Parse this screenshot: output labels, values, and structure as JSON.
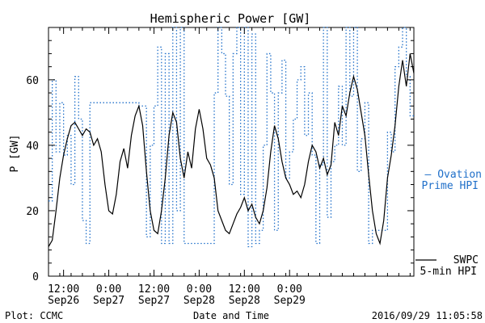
{
  "chart_data": {
    "type": "line",
    "title": "Hemispheric Power [GW]",
    "ylabel": "P [GW]",
    "xlabel": "Date and Time",
    "ylim": [
      0,
      76
    ],
    "yticks": [
      0,
      20,
      40,
      60
    ],
    "xlim": [
      "2016-09-26 08:00",
      "2016-09-30 09:00"
    ],
    "xticks": [
      {
        "time": "2016-09-26 12:00",
        "label1": "12:00",
        "label2": "Sep26"
      },
      {
        "time": "2016-09-27 00:00",
        "label1": "0:00",
        "label2": "Sep27"
      },
      {
        "time": "2016-09-27 12:00",
        "label1": "12:00",
        "label2": "Sep27"
      },
      {
        "time": "2016-09-28 00:00",
        "label1": "0:00",
        "label2": "Sep28"
      },
      {
        "time": "2016-09-28 12:00",
        "label1": "12:00",
        "label2": "Sep28"
      },
      {
        "time": "2016-09-29 00:00",
        "label1": "0:00",
        "label2": "Sep29"
      }
    ],
    "series": [
      {
        "name": "SWPC 5-min HPI",
        "color": "#000000",
        "style": "solid",
        "points": [
          [
            "2016-09-26 08:00",
            9
          ],
          [
            "2016-09-26 09:00",
            11
          ],
          [
            "2016-09-26 10:00",
            20
          ],
          [
            "2016-09-26 11:00",
            30
          ],
          [
            "2016-09-26 12:00",
            37
          ],
          [
            "2016-09-26 13:00",
            42
          ],
          [
            "2016-09-26 14:00",
            46
          ],
          [
            "2016-09-26 15:00",
            47
          ],
          [
            "2016-09-26 16:00",
            45
          ],
          [
            "2016-09-26 17:00",
            43
          ],
          [
            "2016-09-26 18:00",
            45
          ],
          [
            "2016-09-26 19:00",
            44
          ],
          [
            "2016-09-26 20:00",
            40
          ],
          [
            "2016-09-26 21:00",
            42
          ],
          [
            "2016-09-26 22:00",
            38
          ],
          [
            "2016-09-26 23:00",
            28
          ],
          [
            "2016-09-27 00:00",
            20
          ],
          [
            "2016-09-27 01:00",
            19
          ],
          [
            "2016-09-27 02:00",
            25
          ],
          [
            "2016-09-27 03:00",
            35
          ],
          [
            "2016-09-27 04:00",
            39
          ],
          [
            "2016-09-27 05:00",
            33
          ],
          [
            "2016-09-27 06:00",
            43
          ],
          [
            "2016-09-27 07:00",
            49
          ],
          [
            "2016-09-27 08:00",
            52
          ],
          [
            "2016-09-27 09:00",
            46
          ],
          [
            "2016-09-27 10:00",
            32
          ],
          [
            "2016-09-27 11:00",
            20
          ],
          [
            "2016-09-27 12:00",
            14
          ],
          [
            "2016-09-27 13:00",
            13
          ],
          [
            "2016-09-27 14:00",
            20
          ],
          [
            "2016-09-27 15:00",
            30
          ],
          [
            "2016-09-27 16:00",
            43
          ],
          [
            "2016-09-27 17:00",
            50
          ],
          [
            "2016-09-27 18:00",
            47
          ],
          [
            "2016-09-27 19:00",
            36
          ],
          [
            "2016-09-27 20:00",
            30
          ],
          [
            "2016-09-27 21:00",
            38
          ],
          [
            "2016-09-27 22:00",
            33
          ],
          [
            "2016-09-27 23:00",
            45
          ],
          [
            "2016-09-28 00:00",
            51
          ],
          [
            "2016-09-28 01:00",
            45
          ],
          [
            "2016-09-28 02:00",
            36
          ],
          [
            "2016-09-28 03:00",
            34
          ],
          [
            "2016-09-28 04:00",
            30
          ],
          [
            "2016-09-28 05:00",
            20
          ],
          [
            "2016-09-28 06:00",
            17
          ],
          [
            "2016-09-28 07:00",
            14
          ],
          [
            "2016-09-28 08:00",
            13
          ],
          [
            "2016-09-28 09:00",
            16
          ],
          [
            "2016-09-28 10:00",
            19
          ],
          [
            "2016-09-28 11:00",
            21
          ],
          [
            "2016-09-28 12:00",
            24
          ],
          [
            "2016-09-28 13:00",
            20
          ],
          [
            "2016-09-28 14:00",
            22
          ],
          [
            "2016-09-28 15:00",
            18
          ],
          [
            "2016-09-28 16:00",
            16
          ],
          [
            "2016-09-28 17:00",
            20
          ],
          [
            "2016-09-28 18:00",
            27
          ],
          [
            "2016-09-28 19:00",
            38
          ],
          [
            "2016-09-28 20:00",
            46
          ],
          [
            "2016-09-28 21:00",
            42
          ],
          [
            "2016-09-28 22:00",
            35
          ],
          [
            "2016-09-28 23:00",
            30
          ],
          [
            "2016-09-29 00:00",
            28
          ],
          [
            "2016-09-29 01:00",
            25
          ],
          [
            "2016-09-29 02:00",
            26
          ],
          [
            "2016-09-29 03:00",
            24
          ],
          [
            "2016-09-29 04:00",
            28
          ],
          [
            "2016-09-29 05:00",
            35
          ],
          [
            "2016-09-29 06:00",
            40
          ],
          [
            "2016-09-29 07:00",
            38
          ],
          [
            "2016-09-29 08:00",
            33
          ],
          [
            "2016-09-29 09:00",
            36
          ],
          [
            "2016-09-29 10:00",
            31
          ],
          [
            "2016-09-29 11:00",
            34
          ],
          [
            "2016-09-29 12:00",
            47
          ],
          [
            "2016-09-29 13:00",
            43
          ],
          [
            "2016-09-29 14:00",
            52
          ],
          [
            "2016-09-29 15:00",
            49
          ],
          [
            "2016-09-29 16:00",
            56
          ],
          [
            "2016-09-29 17:00",
            61
          ],
          [
            "2016-09-29 18:00",
            57
          ],
          [
            "2016-09-29 19:00",
            50
          ],
          [
            "2016-09-29 20:00",
            43
          ],
          [
            "2016-09-29 21:00",
            31
          ],
          [
            "2016-09-29 22:00",
            20
          ],
          [
            "2016-09-29 23:00",
            13
          ],
          [
            "2016-09-30 00:00",
            10
          ],
          [
            "2016-09-30 01:00",
            17
          ],
          [
            "2016-09-30 02:00",
            30
          ],
          [
            "2016-09-30 03:00",
            37
          ],
          [
            "2016-09-30 04:00",
            46
          ],
          [
            "2016-09-30 05:00",
            58
          ],
          [
            "2016-09-30 06:00",
            66
          ],
          [
            "2016-09-30 07:00",
            58
          ],
          [
            "2016-09-30 08:00",
            68
          ],
          [
            "2016-09-30 09:00",
            62
          ]
        ]
      },
      {
        "name": "Ovation Prime HPI",
        "color": "#1f6fc9",
        "style": "dotted-step",
        "points": [
          [
            "2016-09-26 08:00",
            23
          ],
          [
            "2016-09-26 09:00",
            60
          ],
          [
            "2016-09-26 10:00",
            38
          ],
          [
            "2016-09-26 11:00",
            53
          ],
          [
            "2016-09-26 12:00",
            37
          ],
          [
            "2016-09-26 13:00",
            43
          ],
          [
            "2016-09-26 14:00",
            28
          ],
          [
            "2016-09-26 15:00",
            61
          ],
          [
            "2016-09-26 16:00",
            48
          ],
          [
            "2016-09-26 17:00",
            17
          ],
          [
            "2016-09-26 18:00",
            10
          ],
          [
            "2016-09-26 19:00",
            53
          ],
          [
            "2016-09-27 04:00",
            53
          ],
          [
            "2016-09-27 08:00",
            52
          ],
          [
            "2016-09-27 10:00",
            12
          ],
          [
            "2016-09-27 11:00",
            40
          ],
          [
            "2016-09-27 12:00",
            52
          ],
          [
            "2016-09-27 13:00",
            70
          ],
          [
            "2016-09-27 14:00",
            10
          ],
          [
            "2016-09-27 15:00",
            68
          ],
          [
            "2016-09-27 16:00",
            10
          ],
          [
            "2016-09-27 17:00",
            76
          ],
          [
            "2016-09-27 18:00",
            20
          ],
          [
            "2016-09-27 19:00",
            76
          ],
          [
            "2016-09-27 20:00",
            10
          ],
          [
            "2016-09-28 02:00",
            10
          ],
          [
            "2016-09-28 04:00",
            56
          ],
          [
            "2016-09-28 05:00",
            76
          ],
          [
            "2016-09-28 06:00",
            68
          ],
          [
            "2016-09-28 07:00",
            55
          ],
          [
            "2016-09-28 08:00",
            28
          ],
          [
            "2016-09-28 09:00",
            68
          ],
          [
            "2016-09-28 10:00",
            76
          ],
          [
            "2016-09-28 11:00",
            25
          ],
          [
            "2016-09-28 12:00",
            76
          ],
          [
            "2016-09-28 13:00",
            9
          ],
          [
            "2016-09-28 14:00",
            74
          ],
          [
            "2016-09-28 15:00",
            10
          ],
          [
            "2016-09-28 16:00",
            14
          ],
          [
            "2016-09-28 17:00",
            40
          ],
          [
            "2016-09-28 18:00",
            68
          ],
          [
            "2016-09-28 19:00",
            56
          ],
          [
            "2016-09-28 20:00",
            14
          ],
          [
            "2016-09-28 21:00",
            56
          ],
          [
            "2016-09-28 22:00",
            66
          ],
          [
            "2016-09-28 23:00",
            30
          ],
          [
            "2016-09-29 00:00",
            38
          ],
          [
            "2016-09-29 01:00",
            48
          ],
          [
            "2016-09-29 02:00",
            60
          ],
          [
            "2016-09-29 03:00",
            64
          ],
          [
            "2016-09-29 04:00",
            43
          ],
          [
            "2016-09-29 05:00",
            56
          ],
          [
            "2016-09-29 06:00",
            37
          ],
          [
            "2016-09-29 07:00",
            10
          ],
          [
            "2016-09-29 08:00",
            34
          ],
          [
            "2016-09-29 09:00",
            76
          ],
          [
            "2016-09-29 10:00",
            18
          ],
          [
            "2016-09-29 11:00",
            35
          ],
          [
            "2016-09-29 12:00",
            40
          ],
          [
            "2016-09-29 13:00",
            58
          ],
          [
            "2016-09-29 14:00",
            40
          ],
          [
            "2016-09-29 15:00",
            76
          ],
          [
            "2016-09-29 16:00",
            55
          ],
          [
            "2016-09-29 17:00",
            76
          ],
          [
            "2016-09-29 18:00",
            32
          ],
          [
            "2016-09-29 19:00",
            42
          ],
          [
            "2016-09-29 20:00",
            53
          ],
          [
            "2016-09-29 21:00",
            10
          ],
          [
            "2016-09-29 22:00",
            14
          ],
          [
            "2016-09-30 01:00",
            14
          ],
          [
            "2016-09-30 02:00",
            44
          ],
          [
            "2016-09-30 03:00",
            38
          ],
          [
            "2016-09-30 04:00",
            64
          ],
          [
            "2016-09-30 05:00",
            70
          ],
          [
            "2016-09-30 06:00",
            76
          ],
          [
            "2016-09-30 07:00",
            61
          ],
          [
            "2016-09-30 08:00",
            49
          ],
          [
            "2016-09-30 09:00",
            49
          ]
        ]
      }
    ],
    "legend": [
      {
        "text": "— Ovation",
        "line2": "Prime HPI",
        "color": "#1f6fc9",
        "placement": "right-middle"
      },
      {
        "text": "SWPC",
        "line2": "5-min HPI",
        "color": "#000000",
        "placement": "right-bottom"
      }
    ]
  },
  "footer": {
    "left": "Plot: CCMC",
    "center": "Date and Time",
    "right": "2016/09/29 11:05:58"
  }
}
